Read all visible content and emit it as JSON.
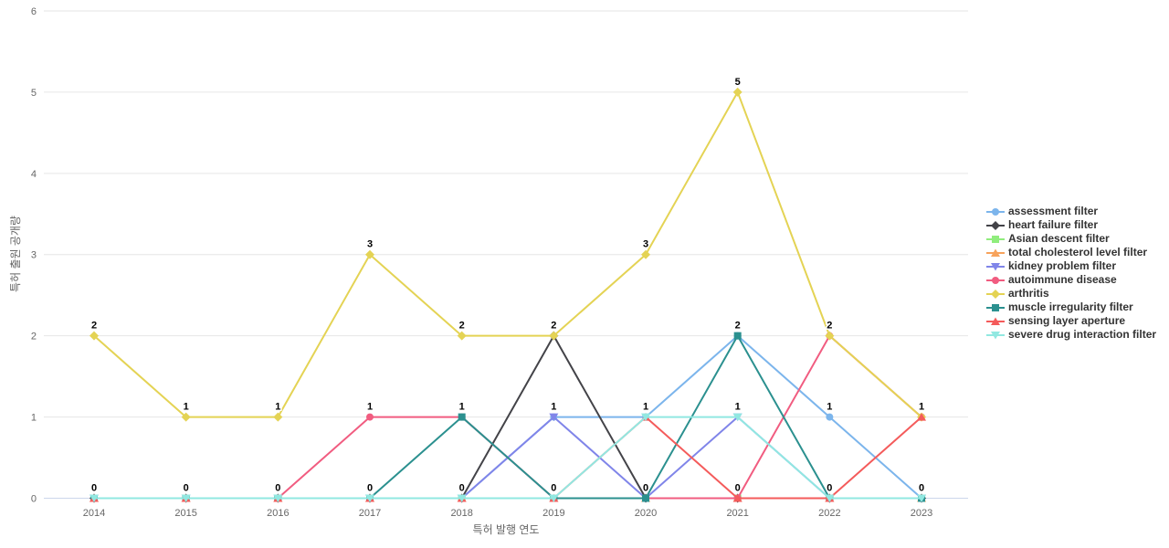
{
  "chart_data": {
    "type": "line",
    "title": "",
    "xlabel": "특허 발행 연도",
    "ylabel": "특허 출원 공개량",
    "categories": [
      "2014",
      "2015",
      "2016",
      "2017",
      "2018",
      "2019",
      "2020",
      "2021",
      "2022",
      "2023"
    ],
    "ylim": [
      0,
      6
    ],
    "y_ticks": [
      0,
      1,
      2,
      3,
      4,
      5,
      6
    ],
    "grid": true,
    "legend_position": "right",
    "data_labels": true,
    "colors": {
      "grid_line": "#e6e6e6",
      "axis_line": "#ccd6eb",
      "tick_label": "#666666",
      "data_label": "#000000",
      "legend_text": "#333333"
    },
    "series": [
      {
        "name": "assessment filter",
        "color": "#7cb5ec",
        "marker": "circle",
        "values": [
          0,
          0,
          0,
          0,
          0,
          1,
          1,
          2,
          1,
          0
        ]
      },
      {
        "name": "heart failure filter",
        "color": "#434348",
        "marker": "diamond",
        "values": [
          0,
          0,
          0,
          0,
          0,
          2,
          0,
          0,
          0,
          0
        ]
      },
      {
        "name": "Asian descent filter",
        "color": "#90ed7d",
        "marker": "square",
        "values": [
          0,
          0,
          0,
          0,
          0,
          0,
          0,
          0,
          0,
          0
        ]
      },
      {
        "name": "total cholesterol level filter",
        "color": "#f7a35c",
        "marker": "triangle",
        "values": [
          0,
          0,
          0,
          0,
          0,
          0,
          0,
          0,
          0,
          0
        ]
      },
      {
        "name": "kidney problem filter",
        "color": "#8085e9",
        "marker": "triangle-down",
        "values": [
          0,
          0,
          0,
          0,
          0,
          1,
          0,
          1,
          0,
          0
        ]
      },
      {
        "name": "autoimmune disease",
        "color": "#f15c80",
        "marker": "circle",
        "values": [
          0,
          0,
          0,
          1,
          1,
          0,
          0,
          0,
          2,
          1
        ]
      },
      {
        "name": "arthritis",
        "color": "#e4d354",
        "marker": "diamond",
        "values": [
          2,
          1,
          1,
          3,
          2,
          2,
          3,
          5,
          2,
          1
        ]
      },
      {
        "name": "muscle irregularity filter",
        "color": "#2b908f",
        "marker": "square",
        "values": [
          0,
          0,
          0,
          0,
          1,
          0,
          0,
          2,
          0,
          0
        ]
      },
      {
        "name": "sensing layer aperture",
        "color": "#f45b5b",
        "marker": "triangle",
        "values": [
          0,
          0,
          0,
          0,
          0,
          0,
          1,
          0,
          0,
          1
        ]
      },
      {
        "name": "severe drug interaction filter",
        "color": "#91e8e1",
        "marker": "triangle-down",
        "values": [
          0,
          0,
          0,
          0,
          0,
          0,
          1,
          1,
          0,
          0
        ]
      }
    ]
  }
}
